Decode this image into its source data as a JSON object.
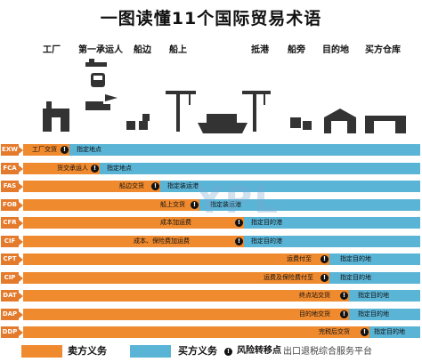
{
  "title": "一图读懂11个国际贸易术语",
  "locations": [
    "工厂",
    "第一承运人",
    "船边",
    "船上",
    "抵港",
    "船旁",
    "目的地",
    "买方仓库"
  ],
  "terms": [
    {
      "code": "EXW",
      "seller_label": "工厂交货",
      "buyer_label": "指定地点"
    },
    {
      "code": "FCA",
      "seller_label": "货交承运人",
      "buyer_label": "指定地点"
    },
    {
      "code": "FAS",
      "seller_label": "船边交货",
      "buyer_label": "指定装运港"
    },
    {
      "code": "FOB",
      "seller_label": "船上交货",
      "buyer_label": "指定装运港"
    },
    {
      "code": "CFR",
      "seller_label": "成本加运费",
      "buyer_label": "指定目的港"
    },
    {
      "code": "CIF",
      "seller_label": "成本、保险费加运费",
      "buyer_label": "指定目的港"
    },
    {
      "code": "CPT",
      "seller_label": "运费付至",
      "buyer_label": "指定目的地"
    },
    {
      "code": "CIP",
      "seller_label": "运费及保险费付至",
      "buyer_label": "指定目的地"
    },
    {
      "code": "DAT",
      "seller_label": "终点站交货",
      "buyer_label": "指定目的地"
    },
    {
      "code": "DAP",
      "seller_label": "目的地交货",
      "buyer_label": "指定目的地"
    },
    {
      "code": "DDP",
      "seller_label": "完税后交货",
      "buyer_label": "指定目的地"
    }
  ],
  "legend": {
    "seller": "卖方义务",
    "buyer": "买方义务",
    "risk": "风险转移点"
  },
  "watermark": "YPL",
  "source": "出口退税综合服务平台",
  "colors": {
    "seller": "#f08a2e",
    "buyer": "#5ab4d6",
    "code_bg": "#e47a2b"
  }
}
